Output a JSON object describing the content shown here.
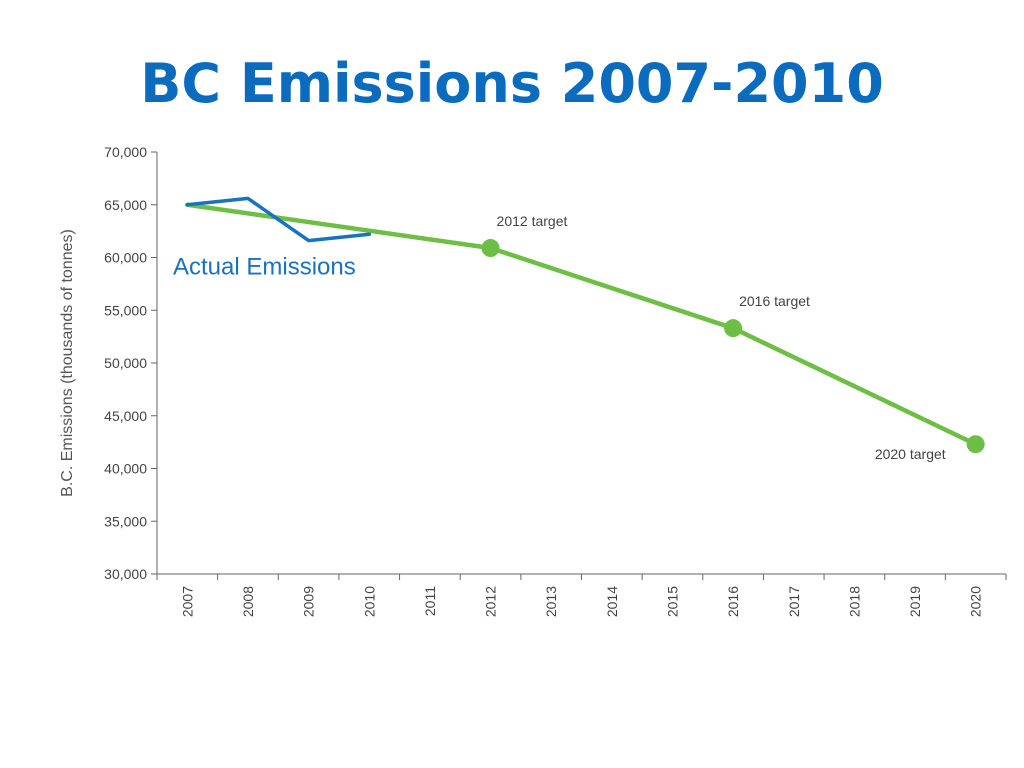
{
  "slide": {
    "title": "BC Emissions 2007-2010"
  },
  "chart_data": {
    "type": "line",
    "x": [
      "2007",
      "2008",
      "2009",
      "2010",
      "2011",
      "2012",
      "2013",
      "2014",
      "2015",
      "2016",
      "2017",
      "2018",
      "2019",
      "2020"
    ],
    "ylabel": "B.C. Emissions (thousands of tonnes)",
    "ylim": [
      30000,
      70000
    ],
    "yticks": [
      "30,000",
      "35,000",
      "40,000",
      "45,000",
      "50,000",
      "55,000",
      "60,000",
      "65,000",
      "70,000"
    ],
    "grid": false,
    "series": [
      {
        "name": "Actual Emissions",
        "color": "#1872c0",
        "points": [
          {
            "x": "2007",
            "y": 65000
          },
          {
            "x": "2008",
            "y": 65600
          },
          {
            "x": "2009",
            "y": 61600
          },
          {
            "x": "2010",
            "y": 62200
          }
        ]
      },
      {
        "color": "#6dbe45",
        "points": [
          {
            "x": "2007",
            "y": 65000
          },
          {
            "x": "2012",
            "y": 60900
          },
          {
            "x": "2016",
            "y": 53300
          },
          {
            "x": "2020",
            "y": 42300
          }
        ],
        "markers": [
          "2012",
          "2016",
          "2020"
        ]
      }
    ],
    "annotations": [
      {
        "x": "2012",
        "y": 60900,
        "text": "2012 target",
        "placement": "above-right"
      },
      {
        "x": "2016",
        "y": 53300,
        "text": "2016 target",
        "placement": "above-right"
      },
      {
        "x": "2020",
        "y": 42300,
        "text": "2020 target",
        "placement": "below-left"
      }
    ]
  }
}
